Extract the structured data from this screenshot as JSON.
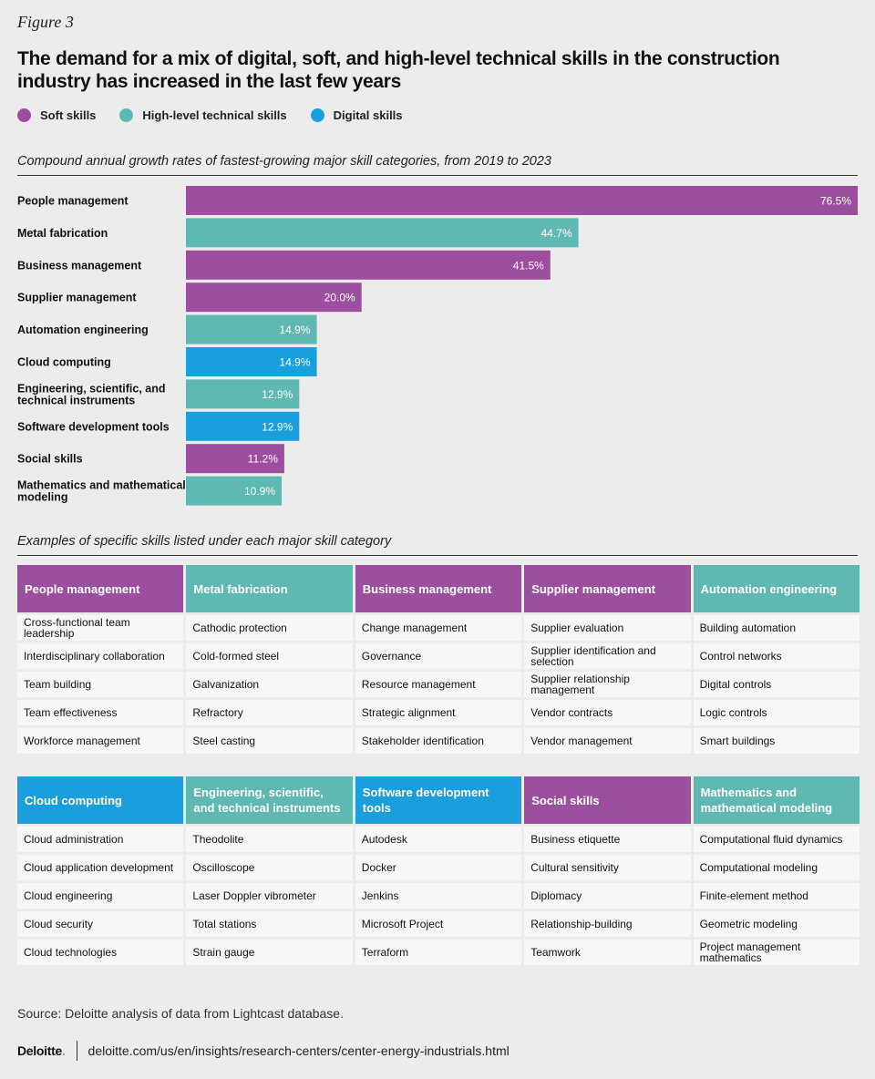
{
  "figure_label": "Figure 3",
  "title": "The demand for a mix of digital, soft, and high-level technical skills in the construction industry has increased in the last few years",
  "legend": [
    {
      "label": "Soft skills",
      "color": "#9b4f9e"
    },
    {
      "label": "High-level technical skills",
      "color": "#5fb8b2"
    },
    {
      "label": "Digital skills",
      "color": "#1b9fdc"
    }
  ],
  "chart_subtitle": "Compound annual growth rates of fastest-growing major skill categories, from 2019 to 2023",
  "chart_data": {
    "type": "bar",
    "orientation": "horizontal",
    "categories": [
      "People management",
      "Metal fabrication",
      "Business management",
      "Supplier management",
      "Automation engineering",
      "Cloud computing",
      "Engineering, scientific, and technical instruments",
      "Software development tools",
      "Social skills",
      "Mathematics and mathematical modeling"
    ],
    "values": [
      76.5,
      44.7,
      41.5,
      20.0,
      14.9,
      14.9,
      12.9,
      12.9,
      11.2,
      10.9
    ],
    "value_labels": [
      "76.5%",
      "44.7%",
      "41.5%",
      "20.0%",
      "14.9%",
      "14.9%",
      "12.9%",
      "12.9%",
      "11.2%",
      "10.9%"
    ],
    "groups": [
      "Soft skills",
      "High-level technical skills",
      "Soft skills",
      "Soft skills",
      "High-level technical skills",
      "Digital skills",
      "High-level technical skills",
      "Digital skills",
      "Soft skills",
      "High-level technical skills"
    ],
    "xlim": [
      0,
      76.5
    ],
    "grid": false,
    "legend_position": "top-left"
  },
  "table_subtitle": "Examples of specific skills listed under each major skill category",
  "tables": [
    {
      "headers": [
        {
          "label": "People management",
          "group": "Soft skills"
        },
        {
          "label": "Metal fabrication",
          "group": "High-level technical skills"
        },
        {
          "label": "Business management",
          "group": "Soft skills"
        },
        {
          "label": "Supplier management",
          "group": "Soft skills"
        },
        {
          "label": "Automation engineering",
          "group": "High-level technical skills"
        }
      ],
      "rows": [
        [
          "Cross-functional team leadership",
          "Cathodic protection",
          "Change management",
          "Supplier evaluation",
          "Building automation"
        ],
        [
          "Interdisciplinary collaboration",
          "Cold-formed steel",
          "Governance",
          "Supplier identification and selection",
          "Control networks"
        ],
        [
          "Team building",
          "Galvanization",
          "Resource management",
          "Supplier relationship management",
          "Digital controls"
        ],
        [
          "Team effectiveness",
          "Refractory",
          "Strategic alignment",
          "Vendor contracts",
          "Logic controls"
        ],
        [
          "Workforce management",
          "Steel casting",
          "Stakeholder identification",
          "Vendor management",
          "Smart buildings"
        ]
      ]
    },
    {
      "headers": [
        {
          "label": "Cloud computing",
          "group": "Digital skills"
        },
        {
          "label": "Engineering, scientific, and technical instruments",
          "group": "High-level technical skills"
        },
        {
          "label": "Software development tools",
          "group": "Digital skills"
        },
        {
          "label": "Social skills",
          "group": "Soft skills"
        },
        {
          "label": "Mathematics and mathematical modeling",
          "group": "High-level technical skills"
        }
      ],
      "rows": [
        [
          "Cloud administration",
          "Theodolite",
          "Autodesk",
          "Business etiquette",
          "Computational fluid dynamics"
        ],
        [
          "Cloud application development",
          "Oscilloscope",
          "Docker",
          "Cultural sensitivity",
          "Computational modeling"
        ],
        [
          "Cloud engineering",
          "Laser Doppler vibrometer",
          "Jenkins",
          "Diplomacy",
          "Finite-element method"
        ],
        [
          "Cloud security",
          "Total stations",
          "Microsoft Project",
          "Relationship-building",
          "Geometric modeling"
        ],
        [
          "Cloud technologies",
          "Strain gauge",
          "Terraform",
          "Teamwork",
          "Project management mathematics"
        ]
      ]
    }
  ],
  "source": "Source: Deloitte analysis of data from Lightcast database.",
  "footer": {
    "logo": "Deloitte",
    "logo_dot": ".",
    "url": "deloitte.com/us/en/insights/research-centers/center-energy-industrials.html"
  }
}
